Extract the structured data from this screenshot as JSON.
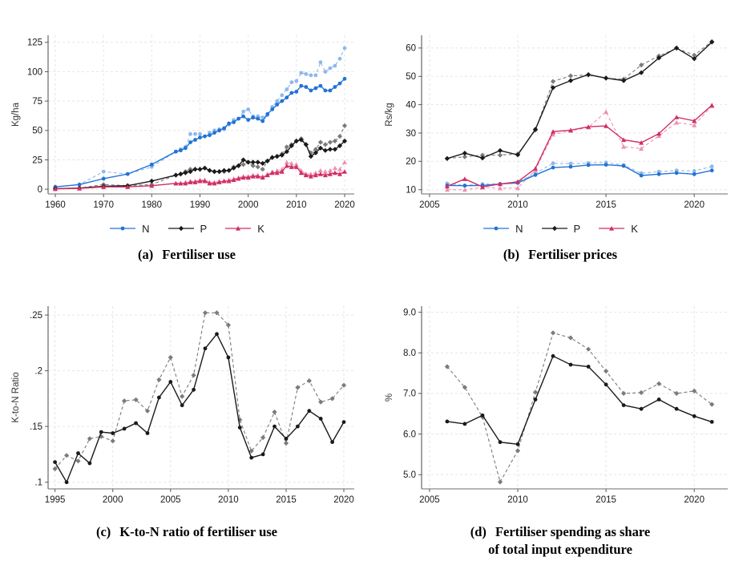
{
  "figure": {
    "background": "#ffffff",
    "grid_color": "#e5e5e5",
    "axis_color": "#5a5a5a"
  },
  "chart_data": [
    {
      "id": "a",
      "type": "line",
      "caption_tag": "(a)",
      "caption_text": "Fertiliser use",
      "ylabel": "Kg/ha",
      "xlim": [
        1958.5,
        2022
      ],
      "ylim": [
        -4,
        131
      ],
      "xticks": [
        1960,
        1970,
        1980,
        1990,
        2000,
        2010,
        2020
      ],
      "ytick_values": [
        0,
        25,
        50,
        75,
        100,
        125
      ],
      "ytick_labels": [
        "0",
        "25",
        "50",
        "75",
        "100",
        "125"
      ],
      "grid": true,
      "legend_position": "bottom",
      "legend": [
        {
          "label": "N",
          "color": "#2273d5",
          "marker": "circle"
        },
        {
          "label": "P",
          "color": "#1a1a1a",
          "marker": "diamond"
        },
        {
          "label": "K",
          "color": "#d12e63",
          "marker": "triangle"
        }
      ],
      "x": [
        1960,
        1965,
        1970,
        1975,
        1980,
        1985,
        1986,
        1987,
        1988,
        1989,
        1990,
        1991,
        1992,
        1993,
        1994,
        1995,
        1996,
        1997,
        1998,
        1999,
        2000,
        2001,
        2002,
        2003,
        2004,
        2005,
        2006,
        2007,
        2008,
        2009,
        2010,
        2011,
        2012,
        2013,
        2014,
        2015,
        2016,
        2017,
        2018,
        2019,
        2020
      ],
      "series": [
        {
          "name": "N",
          "style": "solid",
          "color": "#2273d5",
          "marker": "circle",
          "values": [
            2,
            4,
            9,
            13,
            21,
            32,
            33,
            35,
            40,
            42,
            44,
            45,
            46,
            48,
            50,
            52,
            56,
            57,
            60,
            62,
            59,
            61,
            60,
            58,
            64,
            68,
            72,
            75,
            78,
            82,
            83,
            88,
            87,
            84,
            86,
            88,
            84,
            84,
            87,
            90,
            94
          ]
        },
        {
          "name": "N",
          "style": "dashed",
          "color": "#8fb8ec",
          "marker": "circle",
          "values": [
            2,
            4,
            15,
            13,
            19,
            32,
            34,
            36,
            47,
            47,
            47,
            45,
            48,
            50,
            51,
            51,
            55,
            59,
            60,
            66,
            68,
            62,
            62,
            61,
            63,
            70,
            75,
            80,
            85,
            91,
            92,
            99,
            98,
            97,
            97,
            108,
            100,
            103,
            105,
            111,
            120
          ]
        },
        {
          "name": "P",
          "style": "solid",
          "color": "#1a1a1a",
          "marker": "diamond",
          "values": [
            0.5,
            1,
            2.5,
            3,
            7,
            12,
            13,
            14,
            15,
            17,
            17,
            18,
            16,
            15,
            15,
            16,
            16,
            18,
            20,
            25,
            23,
            23,
            23,
            22,
            24,
            27,
            28,
            29,
            32,
            37,
            41,
            42,
            38,
            28,
            31,
            35,
            33,
            34,
            34,
            37,
            41
          ]
        },
        {
          "name": "P",
          "style": "dashed",
          "color": "#7b7b7b",
          "marker": "diamond",
          "values": [
            0.5,
            1,
            4,
            3,
            4,
            12,
            13,
            15,
            17,
            17,
            17,
            18,
            16,
            15,
            15,
            15,
            16,
            19,
            20,
            21,
            23,
            20,
            19,
            17,
            24,
            27,
            28,
            30,
            36,
            38,
            41,
            43,
            38,
            31,
            34,
            40,
            38,
            40,
            41,
            45,
            54
          ]
        },
        {
          "name": "K",
          "style": "solid",
          "color": "#d12e63",
          "marker": "triangle",
          "values": [
            0.3,
            0.8,
            2,
            2,
            3,
            5,
            5,
            5,
            6,
            6,
            7,
            7,
            5,
            5,
            6,
            7,
            7,
            8,
            9,
            10,
            10,
            11,
            11,
            10,
            12,
            14,
            14,
            15,
            20,
            19,
            19,
            14,
            12,
            11,
            12,
            13,
            12,
            13,
            14,
            13,
            15
          ]
        },
        {
          "name": "K",
          "style": "dashed",
          "color": "#eb93b1",
          "marker": "triangle",
          "values": [
            0.3,
            0.8,
            2,
            2,
            3,
            5,
            5,
            6,
            7,
            7,
            8,
            8,
            6,
            6,
            7,
            7,
            8,
            9,
            10,
            11,
            11,
            12,
            12,
            11,
            13,
            15,
            16,
            17,
            23,
            22,
            21,
            16,
            13,
            13,
            14,
            16,
            15,
            16,
            18,
            17,
            23
          ]
        }
      ]
    },
    {
      "id": "b",
      "type": "line",
      "caption_tag": "(b)",
      "caption_text": "Fertiliser prices",
      "ylabel": "Rs/kg",
      "xlim": [
        2004.55,
        2021.9
      ],
      "ylim": [
        8.5,
        64.5
      ],
      "xticks": [
        2005,
        2010,
        2015,
        2020
      ],
      "ytick_values": [
        10,
        20,
        30,
        40,
        50,
        60
      ],
      "ytick_labels": [
        "10",
        "20",
        "30",
        "40",
        "50",
        "60"
      ],
      "grid": true,
      "legend_position": "bottom",
      "legend": [
        {
          "label": "N",
          "color": "#2273d5",
          "marker": "circle"
        },
        {
          "label": "P",
          "color": "#1a1a1a",
          "marker": "diamond"
        },
        {
          "label": "K",
          "color": "#d12e63",
          "marker": "triangle"
        }
      ],
      "x": [
        2006,
        2007,
        2008,
        2009,
        2010,
        2011,
        2012,
        2013,
        2014,
        2015,
        2016,
        2017,
        2018,
        2019,
        2020,
        2021
      ],
      "series": [
        {
          "name": "N",
          "style": "solid",
          "color": "#2273d5",
          "marker": "circle",
          "values": [
            11.5,
            11.4,
            11.5,
            12.0,
            12.4,
            15.2,
            17.8,
            18.1,
            18.7,
            18.8,
            18.4,
            15.0,
            15.5,
            15.9,
            15.5,
            16.8
          ]
        },
        {
          "name": "N",
          "style": "dashed",
          "color": "#8fb8ec",
          "marker": "circle",
          "values": [
            12.2,
            11.5,
            12.0,
            12.0,
            12.7,
            15.8,
            19.3,
            19.2,
            19.4,
            19.6,
            18.7,
            15.8,
            16.4,
            16.8,
            16.6,
            18.2
          ]
        },
        {
          "name": "P",
          "style": "solid",
          "color": "#1a1a1a",
          "marker": "diamond",
          "values": [
            21.0,
            22.9,
            21.2,
            23.8,
            22.3,
            31.3,
            46.0,
            48.5,
            50.6,
            49.4,
            48.5,
            51.3,
            56.5,
            60.0,
            56.2,
            62.1
          ]
        },
        {
          "name": "P",
          "style": "dashed",
          "color": "#7b7b7b",
          "marker": "diamond",
          "values": [
            21.0,
            21.6,
            22.2,
            22.2,
            22.6,
            31.0,
            48.2,
            50.2,
            50.5,
            49.3,
            49.0,
            54.0,
            57.2,
            59.9,
            57.5,
            62.3
          ]
        },
        {
          "name": "K",
          "style": "solid",
          "color": "#d12e63",
          "marker": "triangle",
          "values": [
            11.2,
            13.8,
            11.0,
            12.0,
            12.8,
            17.5,
            30.5,
            31.0,
            32.2,
            32.5,
            27.6,
            26.6,
            29.8,
            35.6,
            34.3,
            39.8
          ]
        },
        {
          "name": "K",
          "style": "dashed",
          "color": "#eb93b1",
          "marker": "triangle",
          "values": [
            10.0,
            10.0,
            10.8,
            10.5,
            10.6,
            17.0,
            29.5,
            30.8,
            32.0,
            37.5,
            25.2,
            24.5,
            29.0,
            33.7,
            32.8,
            39.5
          ]
        }
      ]
    },
    {
      "id": "c",
      "type": "line",
      "caption_tag": "(c)",
      "caption_text": "K-to-N ratio of fertiliser use",
      "ylabel": "K-to-N Ratio",
      "xlim": [
        1994.4,
        2020.9
      ],
      "ylim": [
        0.094,
        0.258
      ],
      "xticks": [
        1995,
        2000,
        2005,
        2010,
        2015,
        2020
      ],
      "ytick_values": [
        0.1,
        0.15,
        0.2,
        0.25
      ],
      "ytick_labels": [
        ".1",
        ".15",
        ".2",
        ".25"
      ],
      "grid": true,
      "legend_position": "none",
      "legend": [],
      "x": [
        1995,
        1996,
        1997,
        1998,
        1999,
        2000,
        2001,
        2002,
        2003,
        2004,
        2005,
        2006,
        2007,
        2008,
        2009,
        2010,
        2011,
        2012,
        2013,
        2014,
        2015,
        2016,
        2017,
        2018,
        2019,
        2020
      ],
      "series": [
        {
          "name": "K-to-N ratio",
          "style": "solid",
          "color": "#1a1a1a",
          "marker": "circle",
          "values": [
            0.118,
            0.1,
            0.126,
            0.117,
            0.145,
            0.144,
            0.148,
            0.153,
            0.144,
            0.176,
            0.19,
            0.169,
            0.183,
            0.22,
            0.233,
            0.212,
            0.149,
            0.122,
            0.125,
            0.15,
            0.139,
            0.15,
            0.164,
            0.157,
            0.136,
            0.154
          ]
        },
        {
          "name": "K-to-N ratio",
          "style": "dashed",
          "color": "#7b7b7b",
          "marker": "diamond",
          "values": [
            0.112,
            0.124,
            0.119,
            0.139,
            0.141,
            0.137,
            0.173,
            0.174,
            0.164,
            0.192,
            0.212,
            0.177,
            0.196,
            0.252,
            0.252,
            0.241,
            0.156,
            0.128,
            0.14,
            0.163,
            0.135,
            0.185,
            0.191,
            0.172,
            0.175,
            0.187
          ]
        }
      ]
    },
    {
      "id": "d",
      "type": "line",
      "caption_tag": "(d)",
      "caption_text": "Fertiliser spending as share",
      "caption_text2": "of total input expenditure",
      "ylabel": "%",
      "xlim": [
        2004.55,
        2021.9
      ],
      "ylim": [
        4.65,
        9.15
      ],
      "xticks": [
        2005,
        2010,
        2015,
        2020
      ],
      "ytick_values": [
        5.0,
        6.0,
        7.0,
        8.0,
        9.0
      ],
      "ytick_labels": [
        "5.0",
        "6.0",
        "7.0",
        "8.0",
        "9.0"
      ],
      "grid": true,
      "legend_position": "none",
      "legend": [],
      "x": [
        2006,
        2007,
        2008,
        2009,
        2010,
        2011,
        2012,
        2013,
        2014,
        2015,
        2016,
        2017,
        2018,
        2019,
        2020,
        2021
      ],
      "series": [
        {
          "name": "Fertiliser spending share",
          "style": "solid",
          "color": "#1a1a1a",
          "marker": "circle",
          "values": [
            6.31,
            6.25,
            6.46,
            5.8,
            5.75,
            6.85,
            7.92,
            7.71,
            7.66,
            7.22,
            6.71,
            6.62,
            6.85,
            6.62,
            6.44,
            6.3
          ]
        },
        {
          "name": "Fertiliser spending share",
          "style": "dashed",
          "color": "#7b7b7b",
          "marker": "diamond",
          "values": [
            7.66,
            7.15,
            6.42,
            4.82,
            5.59,
            7.03,
            8.49,
            8.37,
            8.09,
            7.55,
            7.0,
            7.02,
            7.24,
            7.0,
            7.06,
            6.73
          ]
        }
      ]
    }
  ]
}
